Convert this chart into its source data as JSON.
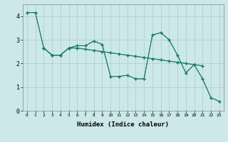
{
  "background_color": "#cce8e8",
  "grid_color": "#aacccc",
  "line_color": "#1a7a6a",
  "xlabel": "Humidex (Indice chaleur)",
  "xlim": [
    -0.5,
    23.5
  ],
  "ylim": [
    0,
    4.5
  ],
  "yticks": [
    0,
    1,
    2,
    3,
    4
  ],
  "xticks": [
    0,
    1,
    2,
    3,
    4,
    5,
    6,
    7,
    8,
    9,
    10,
    11,
    12,
    13,
    14,
    15,
    16,
    17,
    18,
    19,
    20,
    21,
    22,
    23
  ],
  "series1_x": [
    0,
    1,
    2,
    3,
    4,
    5,
    6,
    7,
    8,
    9,
    10,
    11,
    12,
    13,
    14,
    15,
    16,
    17,
    18,
    19,
    20,
    21
  ],
  "series1_y": [
    4.15,
    4.15,
    2.65,
    2.35,
    2.35,
    2.65,
    2.65,
    2.6,
    2.55,
    2.5,
    2.45,
    2.4,
    2.35,
    2.3,
    2.25,
    2.2,
    2.15,
    2.1,
    2.05,
    2.0,
    1.95,
    1.9
  ],
  "series2_x": [
    0,
    1,
    2,
    3,
    4,
    5,
    6,
    7,
    8,
    9,
    10,
    11,
    12,
    13,
    14,
    15,
    16,
    17,
    18,
    19,
    20,
    21,
    22,
    23
  ],
  "series2_y": [
    4.15,
    4.15,
    2.65,
    2.35,
    2.35,
    2.65,
    2.75,
    2.75,
    2.95,
    2.8,
    1.45,
    1.45,
    1.5,
    1.35,
    1.35,
    3.2,
    3.3,
    3.0,
    2.35,
    1.6,
    1.95,
    1.35,
    0.55,
    0.4
  ],
  "series3_x": [
    2,
    3,
    4,
    5,
    6,
    7,
    8,
    9,
    10,
    11,
    12,
    13,
    14,
    15,
    16,
    17,
    18,
    19,
    20,
    21,
    22,
    23
  ],
  "series3_y": [
    2.65,
    2.35,
    2.35,
    2.65,
    2.75,
    2.75,
    2.95,
    2.8,
    1.45,
    1.45,
    1.5,
    1.35,
    1.35,
    3.2,
    3.3,
    3.0,
    2.35,
    1.6,
    1.95,
    1.35,
    0.55,
    0.4
  ],
  "series4_x": [
    2,
    3,
    4,
    5,
    6,
    7,
    8,
    9,
    10,
    11,
    12,
    13,
    14,
    15,
    16,
    17,
    18,
    19,
    20,
    21
  ],
  "series4_y": [
    2.65,
    2.35,
    2.35,
    2.65,
    2.65,
    2.6,
    2.55,
    2.5,
    2.45,
    2.4,
    2.35,
    2.3,
    2.25,
    2.2,
    2.15,
    2.1,
    2.05,
    2.0,
    1.95,
    1.9
  ]
}
